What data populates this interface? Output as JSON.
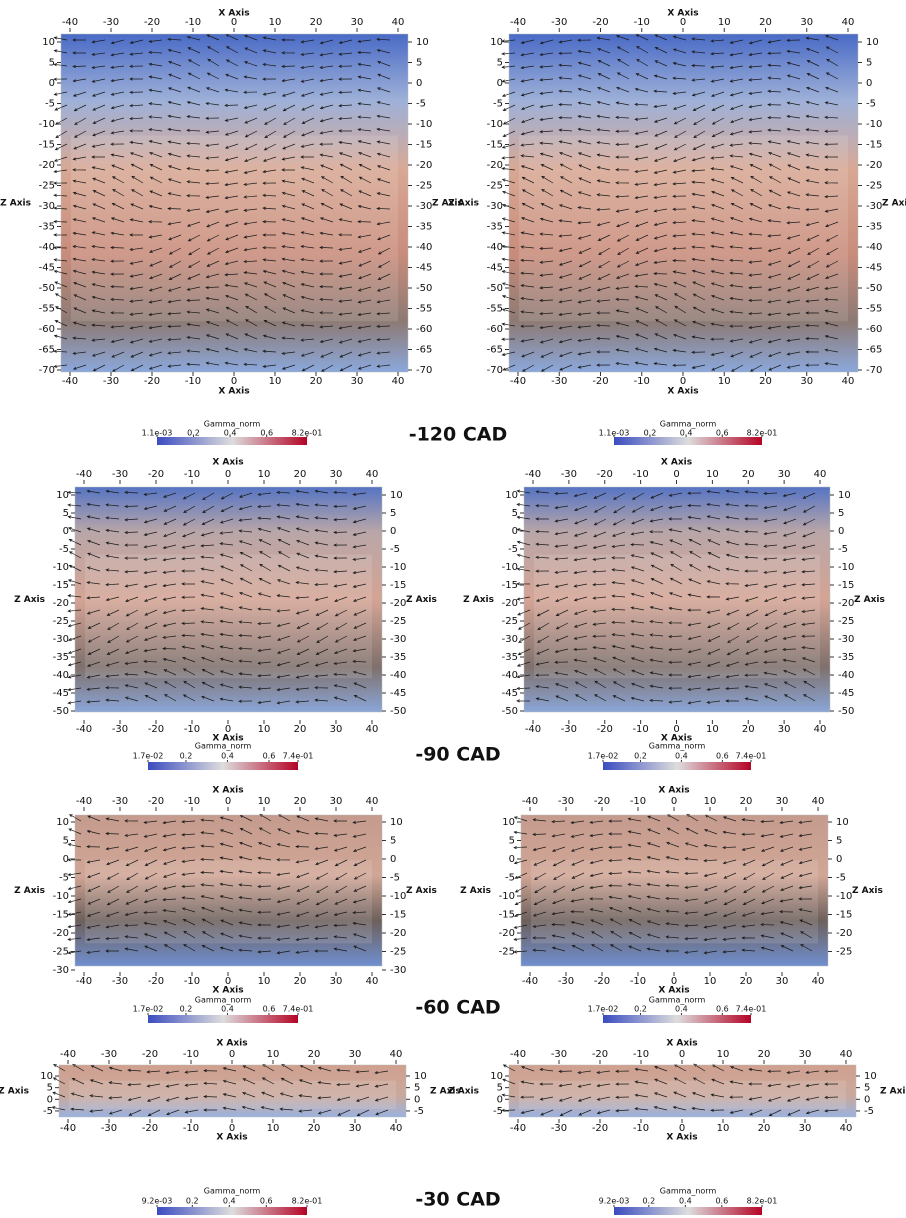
{
  "rows": [
    {
      "label": "-120 CAD",
      "panels": [
        {
          "x_title": "X Axis",
          "z_title": "Z Axis",
          "x_ticks": [
            -40,
            -30,
            -20,
            -10,
            0,
            10,
            20,
            30,
            40
          ],
          "z_ticks": [
            10,
            5,
            0,
            -5,
            -10,
            -15,
            -20,
            -25,
            -30,
            -35,
            -40,
            -45,
            -50,
            -55,
            -60,
            -65,
            -70
          ],
          "colorbar": {
            "title": "Gamma_norm",
            "ticks": [
              {
                "value": 0.0011,
                "label": "1.1e-03"
              },
              0.2,
              0.4,
              0.6,
              {
                "value": 0.82,
                "label": "8.2e-01"
              }
            ]
          }
        },
        {
          "x_title": "X Axis",
          "z_title": "Z Axis",
          "x_ticks": [
            -40,
            -30,
            -20,
            -10,
            0,
            10,
            20,
            30,
            40
          ],
          "z_ticks": [
            10,
            5,
            0,
            -5,
            -10,
            -15,
            -20,
            -25,
            -30,
            -35,
            -40,
            -45,
            -50,
            -55,
            -60,
            -65,
            -70
          ],
          "colorbar": {
            "title": "Gamma_norm",
            "ticks": [
              {
                "value": 0.0011,
                "label": "1.1e-03"
              },
              0.2,
              0.4,
              0.6,
              {
                "value": 0.82,
                "label": "8.2e-01"
              }
            ]
          }
        }
      ]
    },
    {
      "label": "-90 CAD",
      "panels": [
        {
          "x_title": "X Axis",
          "z_title": "Z Axis",
          "x_ticks": [
            -40,
            -30,
            -20,
            -10,
            0,
            10,
            20,
            30,
            40
          ],
          "z_ticks": [
            10,
            5,
            0,
            -5,
            -10,
            -15,
            -20,
            -25,
            -30,
            -35,
            -40,
            -45,
            -50
          ],
          "colorbar": {
            "title": "Gamma_norm",
            "ticks": [
              {
                "value": 0.017,
                "label": "1.7e-02"
              },
              0.2,
              0.4,
              0.6,
              {
                "value": 0.74,
                "label": "7.4e-01"
              }
            ]
          }
        },
        {
          "x_title": "X Axis",
          "z_title": "Z Axis",
          "x_ticks": [
            -40,
            -30,
            -20,
            -10,
            0,
            10,
            20,
            30,
            40
          ],
          "z_ticks": [
            10,
            5,
            0,
            -5,
            -10,
            -15,
            -20,
            -25,
            -30,
            -35,
            -40,
            -45,
            -50
          ],
          "colorbar": {
            "title": "Gamma_norm",
            "ticks": [
              {
                "value": 0.017,
                "label": "1.7e-02"
              },
              0.2,
              0.4,
              0.6,
              {
                "value": 0.74,
                "label": "7.4e-01"
              }
            ]
          }
        }
      ]
    },
    {
      "label": "-60 CAD",
      "panels": [
        {
          "x_title": "X Axis",
          "z_title": "Z Axis",
          "x_ticks": [
            -40,
            -30,
            -20,
            -10,
            0,
            10,
            20,
            30,
            40
          ],
          "z_ticks": [
            10,
            5,
            0,
            -5,
            -10,
            -15,
            -20,
            -25,
            -30
          ],
          "colorbar": {
            "title": "Gamma_norm",
            "ticks": [
              {
                "value": 0.017,
                "label": "1.7e-02"
              },
              0.2,
              0.4,
              0.6,
              {
                "value": 0.74,
                "label": "7.4e-01"
              }
            ]
          }
        },
        {
          "x_title": "X Axis",
          "z_title": "Z Axis",
          "x_ticks": [
            -40,
            -30,
            -20,
            -10,
            0,
            10,
            20,
            30,
            40
          ],
          "z_ticks": [
            10,
            5,
            0,
            -5,
            -10,
            -15,
            -20,
            -25
          ],
          "colorbar": {
            "title": "Gamma_norm",
            "ticks": [
              {
                "value": 0.017,
                "label": "1.7e-02"
              },
              0.2,
              0.4,
              0.6,
              {
                "value": 0.74,
                "label": "7.4e-01"
              }
            ]
          }
        }
      ]
    },
    {
      "label": "-30 CAD",
      "panels": [
        {
          "x_title": "X Axis",
          "z_title": "Z Axis",
          "x_ticks": [
            -40,
            -30,
            -20,
            -10,
            0,
            10,
            20,
            30,
            40
          ],
          "z_ticks": [
            10,
            5,
            0,
            -5
          ],
          "colorbar": {
            "title": "Gamma_norm",
            "ticks": [
              {
                "value": 0.0092,
                "label": "9.2e-03"
              },
              0.2,
              0.4,
              0.6,
              {
                "value": 0.82,
                "label": "8.2e-01"
              }
            ]
          }
        },
        {
          "x_title": "X Axis",
          "z_title": "Z Axis",
          "x_ticks": [
            -40,
            -30,
            -20,
            -10,
            0,
            10,
            20,
            30,
            40
          ],
          "z_ticks": [
            10,
            5,
            0,
            -5
          ],
          "colorbar": {
            "title": "Gamma_norm",
            "ticks": [
              {
                "value": 0.0092,
                "label": "9.2e-03"
              },
              0.2,
              0.4,
              0.6,
              {
                "value": 0.82,
                "label": "8.2e-01"
              }
            ]
          }
        }
      ]
    }
  ]
}
